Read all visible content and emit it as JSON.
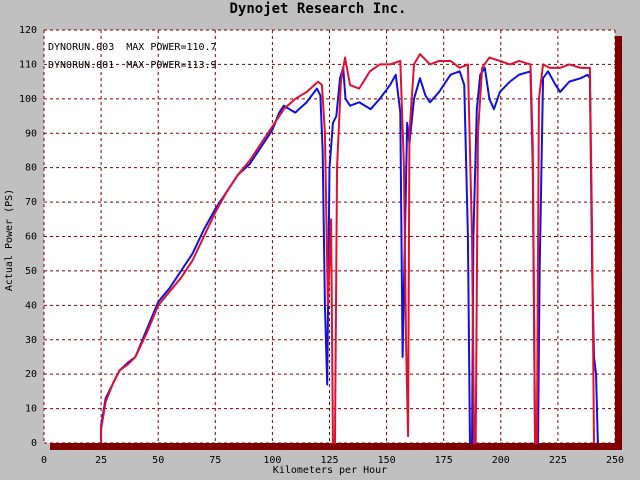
{
  "chart_data": {
    "type": "line",
    "title": "Dynojet Research Inc.",
    "x_label": "Kilometers per Hour",
    "y_label": "Actual Power (PS)",
    "xlim": [
      0,
      250
    ],
    "ylim": [
      0,
      120
    ],
    "xticks": [
      0,
      25,
      50,
      75,
      100,
      125,
      150,
      175,
      200,
      225,
      250
    ],
    "yticks": [
      0,
      10,
      20,
      30,
      40,
      50,
      60,
      70,
      80,
      90,
      100,
      110,
      120
    ],
    "grid": true,
    "legend": "top-left",
    "series": [
      {
        "name": "DYNORUN.003  MAX POWER=110.7",
        "color": "#1010e0",
        "x": [
          25,
          25,
          27,
          30,
          33,
          37,
          40,
          45,
          50,
          55,
          60,
          65,
          70,
          75,
          80,
          85,
          90,
          95,
          100,
          103,
          105,
          110,
          115,
          119.5,
          121,
          122,
          123,
          124,
          125,
          126.5,
          128,
          129.6,
          131,
          132,
          134,
          138,
          143,
          147,
          151.5,
          154,
          156,
          157,
          159,
          160,
          162,
          164.6,
          167,
          169,
          173,
          178,
          182,
          184,
          185.6,
          186.5,
          187.4,
          188,
          189.5,
          191,
          193,
          195,
          197,
          199.6,
          204,
          208,
          213,
          214,
          215,
          216.3,
          217,
          218.5,
          220.7,
          224,
          226,
          230,
          235,
          238,
          239,
          240,
          240.8,
          241.7,
          242.5
        ],
        "values": [
          0,
          5,
          13,
          17,
          21,
          23.5,
          25,
          33,
          41,
          45,
          50,
          55,
          62,
          68,
          73,
          78,
          81,
          86,
          91,
          96,
          98,
          96,
          99,
          103,
          101,
          85,
          40,
          17,
          80,
          93,
          95,
          106,
          109,
          100,
          98,
          99,
          97,
          100,
          104,
          107,
          96,
          25,
          93,
          87,
          100,
          106,
          101,
          99,
          102,
          107,
          108,
          104,
          60,
          0,
          0,
          60,
          97,
          107,
          109,
          100,
          97,
          102,
          105,
          107,
          108,
          80,
          0,
          0,
          50,
          106,
          108,
          104,
          102,
          105,
          106,
          107,
          106,
          50,
          25,
          20,
          0
        ]
      },
      {
        "name": "DYNORUN.001  MAX POWER=113.9",
        "color": "#e01030",
        "x": [
          25,
          25,
          27,
          30,
          33,
          37,
          40,
          45,
          50,
          55,
          60,
          65,
          70,
          75,
          80,
          85,
          90,
          95,
          100,
          105,
          110,
          115,
          120,
          121.7,
          123,
          124.3,
          125.7,
          126.5,
          127.4,
          128.3,
          130,
          131.8,
          134,
          138,
          142.7,
          147,
          151.5,
          156,
          157.6,
          158.5,
          159.4,
          160,
          162,
          164.6,
          169,
          173,
          178,
          182,
          185.6,
          187.4,
          188.3,
          189,
          190,
          191.8,
          195,
          199.6,
          204,
          208,
          213,
          214,
          215,
          215.8,
          216.7,
          218.5,
          221.5,
          226,
          230,
          235,
          239,
          240,
          240.8
        ],
        "values": [
          0,
          4,
          12,
          17,
          21,
          23,
          25,
          32,
          40,
          44,
          48,
          53,
          60,
          67,
          73,
          78,
          82,
          87,
          92,
          97,
          100,
          102,
          105,
          104,
          90,
          40,
          65,
          0,
          0,
          80,
          105,
          112,
          104,
          103,
          108,
          110,
          110,
          111,
          80,
          30,
          2,
          90,
          110,
          113,
          110,
          111,
          111,
          109,
          110,
          60,
          0,
          0,
          90,
          109,
          112,
          111,
          110,
          111,
          110,
          86,
          0,
          0,
          100,
          110,
          109,
          109,
          110,
          109,
          109,
          60,
          0
        ]
      }
    ]
  }
}
